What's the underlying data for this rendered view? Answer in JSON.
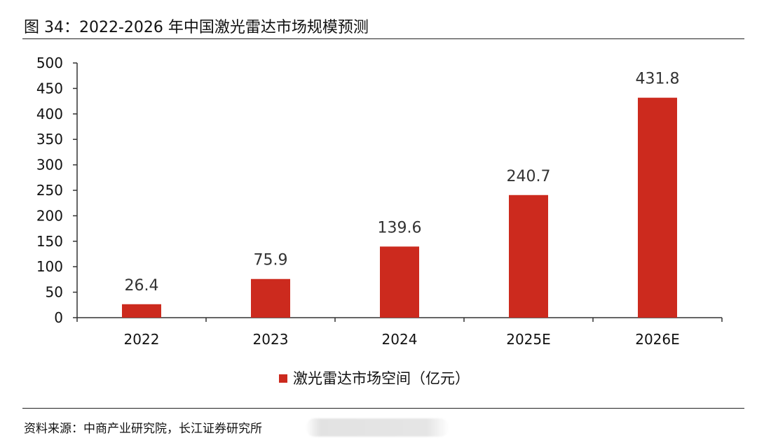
{
  "header": {
    "title": "图 34：2022-2026 年中国激光雷达市场规模预测"
  },
  "footer": {
    "source": "资料来源：中商产业研究院，长江证券研究所"
  },
  "colors": {
    "bar": "#cc2a1e",
    "axis": "#333333",
    "text": "#111111"
  },
  "chart_data": {
    "type": "bar",
    "title": "",
    "xlabel": "",
    "ylabel": "",
    "categories": [
      "2022",
      "2023",
      "2024",
      "2025E",
      "2026E"
    ],
    "series": [
      {
        "name": "激光雷达市场空间（亿元）",
        "values": [
          26.4,
          75.9,
          139.6,
          240.7,
          431.8
        ],
        "value_labels": [
          "26.4",
          "75.9",
          "139.6",
          "240.7",
          "431.8"
        ]
      }
    ],
    "ylim": [
      0,
      500
    ],
    "yticks": [
      0,
      50,
      100,
      150,
      200,
      250,
      300,
      350,
      400,
      450,
      500
    ],
    "grid": false,
    "legend_position": "bottom-center"
  }
}
